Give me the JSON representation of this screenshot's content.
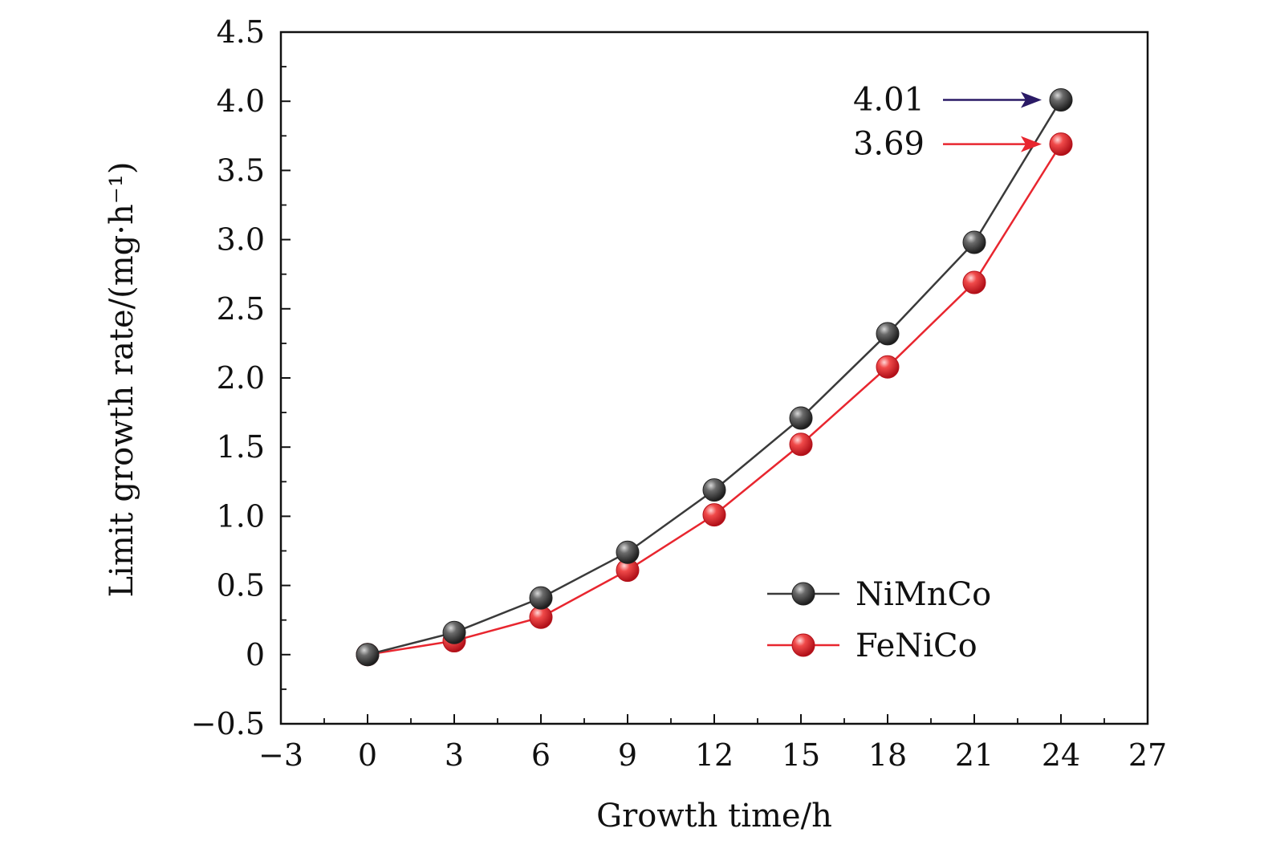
{
  "chart_data": {
    "type": "line",
    "xlabel": "Growth time/h",
    "ylabel": "Limit growth rate/(mg·h⁻¹)",
    "xlim": [
      -3,
      27
    ],
    "ylim": [
      -0.5,
      4.5
    ],
    "xticks": [
      "−3",
      "0",
      "3",
      "6",
      "9",
      "12",
      "15",
      "18",
      "21",
      "24",
      "27"
    ],
    "yticks": [
      "−0.5",
      "0",
      "0.5",
      "1.0",
      "1.5",
      "2.0",
      "2.5",
      "3.0",
      "3.5",
      "4.0",
      "4.5"
    ],
    "x": [
      0,
      3,
      6,
      9,
      12,
      15,
      18,
      21,
      24
    ],
    "series": [
      {
        "name": "NiMnCo",
        "color": "#3a3a3a",
        "values": [
          0.0,
          0.16,
          0.41,
          0.74,
          1.19,
          1.71,
          2.32,
          2.98,
          4.01
        ]
      },
      {
        "name": "FeNiCo",
        "color": "#e8262f",
        "values": [
          0.0,
          0.1,
          0.27,
          0.61,
          1.01,
          1.52,
          2.08,
          2.69,
          3.69
        ]
      }
    ],
    "annotations": [
      {
        "text": "4.01",
        "x": 24,
        "y": 4.01,
        "arrow_color": "#2a1a66"
      },
      {
        "text": "3.69",
        "x": 24,
        "y": 3.69,
        "arrow_color": "#e8262f"
      }
    ],
    "legend_position": "lower-right",
    "grid": false
  }
}
